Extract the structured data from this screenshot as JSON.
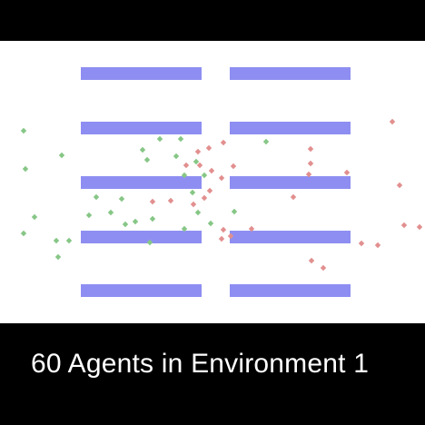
{
  "caption": {
    "text": "60 Agents in Environment 1"
  },
  "colors": {
    "background": "#000000",
    "environment": "#ffffff",
    "obstacle": "#8e8ef2",
    "agent_group_green": "#86c686",
    "agent_group_red": "#e28f8f"
  },
  "agents": {
    "marker": "diamond",
    "group_green": {
      "count": 30
    },
    "group_red": {
      "count": 30
    }
  }
}
